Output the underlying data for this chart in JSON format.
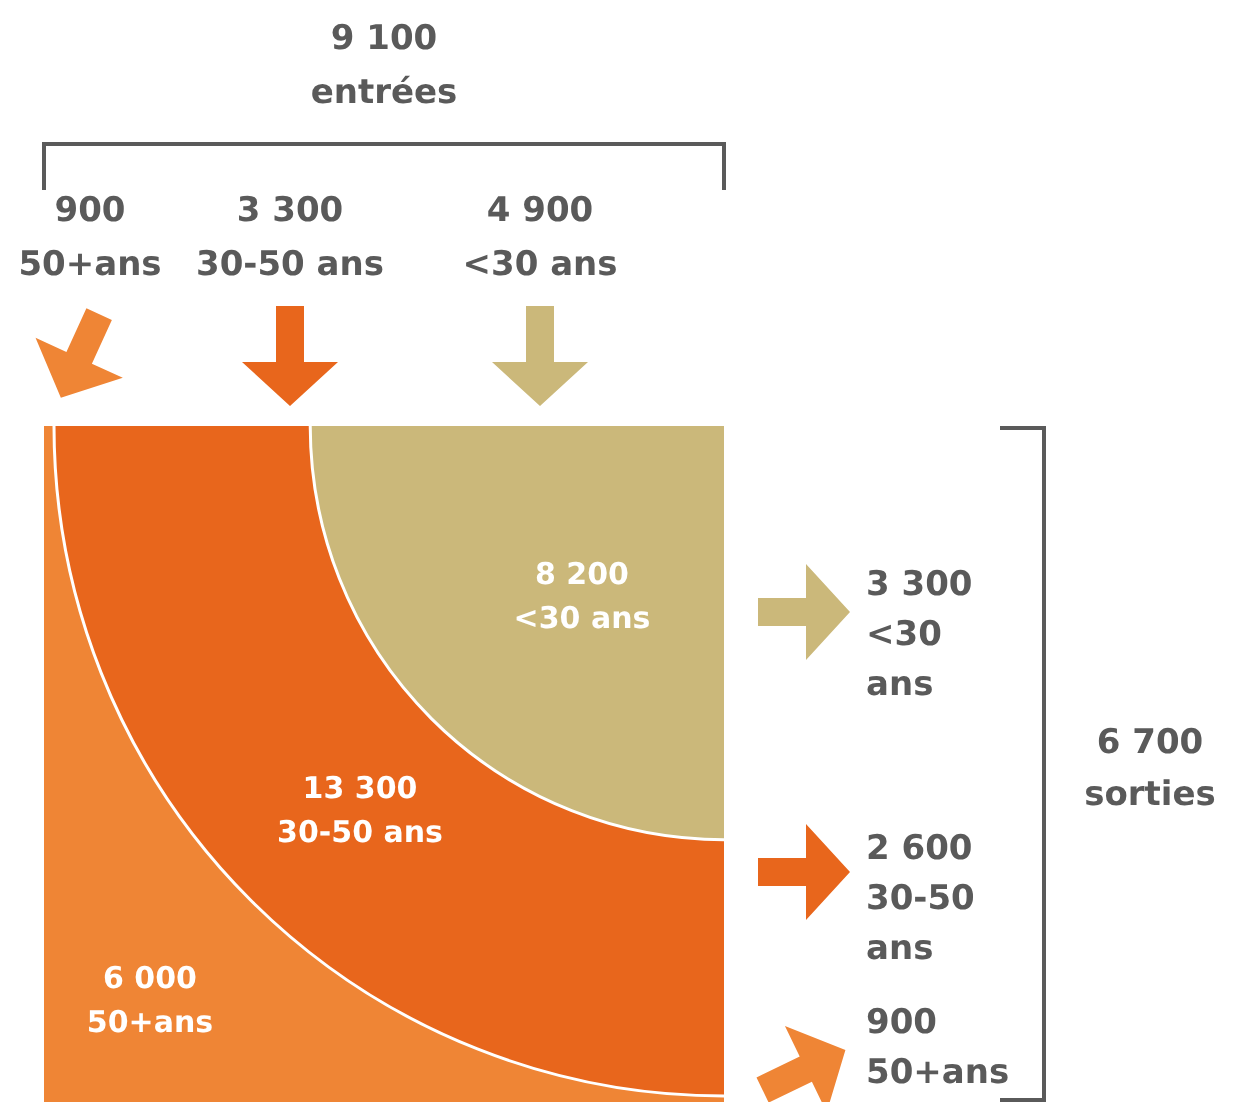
{
  "chart_data": {
    "type": "other",
    "categories": [
      "<30 ans",
      "30-50 ans",
      "50+ans"
    ],
    "series": [
      {
        "values": [
          8200,
          13300,
          6000
        ],
        "value_labels": [
          "8 200",
          "13 300",
          "6 000"
        ],
        "colors": [
          "#cbb87a",
          "#e8661c",
          "#ef8535"
        ]
      },
      {
        "values": [
          4900,
          3300,
          900
        ],
        "value_labels": [
          "4 900",
          "3 300",
          "900"
        ],
        "colors": [
          "#cbb87a",
          "#e8661c",
          "#ef8535"
        ]
      },
      {
        "values": [
          3300,
          2600,
          900
        ],
        "value_labels": [
          "3 300",
          "2 600",
          "900"
        ],
        "colors": [
          "#cbb87a",
          "#e8661c",
          "#ef8535"
        ]
      }
    ],
    "annotations": [
      "9 100\nentrées",
      "6 700\nsorties"
    ]
  }
}
